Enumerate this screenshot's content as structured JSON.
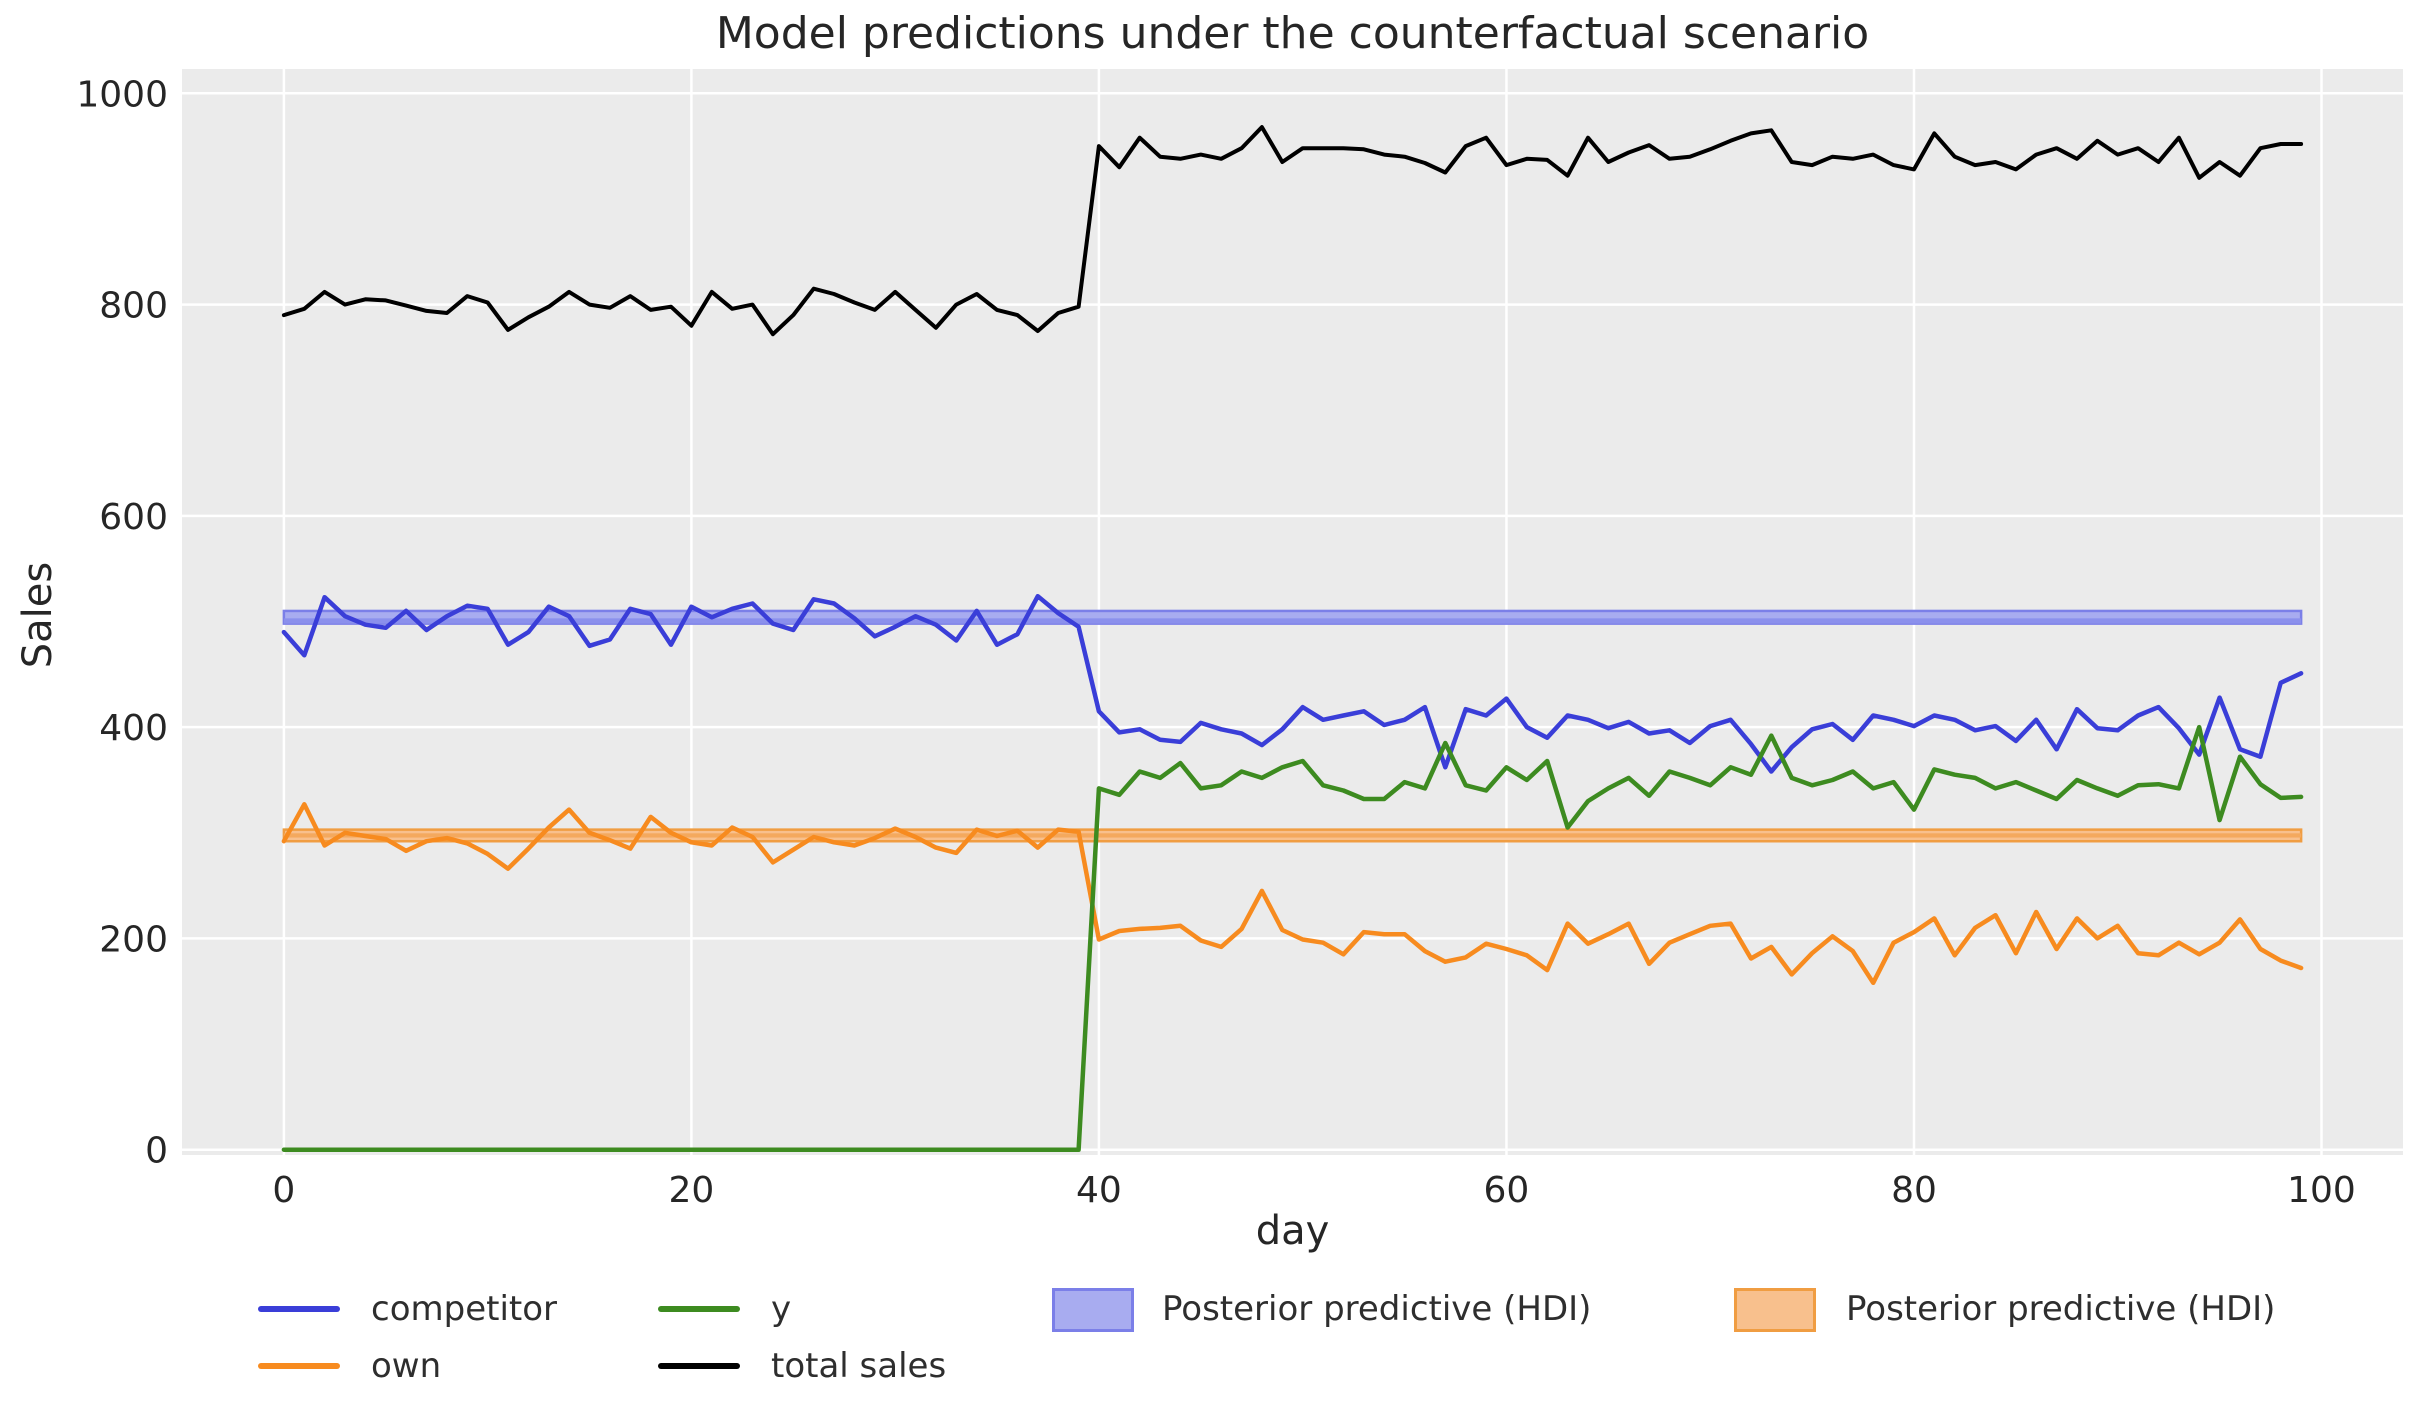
{
  "title": "Model predictions under the counterfactual scenario",
  "axes": {
    "xlabel": "day",
    "ylabel": "Sales",
    "x_ticks": [
      0,
      20,
      40,
      60,
      80,
      100
    ],
    "y_ticks": [
      0,
      200,
      400,
      600,
      800,
      1000
    ],
    "xlim": [
      -5,
      104
    ],
    "ylim": [
      -5,
      1023
    ],
    "grid": "white on light-gray ggplot background"
  },
  "colors": {
    "competitor": "#3a3ed8",
    "own": "#f78b1f",
    "y": "#3d8b20",
    "total_sales": "#000000",
    "hdi_blue_fill": "#a8acf0",
    "hdi_blue_edge": "#7b7fe8",
    "hdi_blue_stripe": "#8b90ec",
    "hdi_orange_fill": "#f8c08d",
    "hdi_orange_edge": "#f09d42",
    "hdi_orange_stripe": "#f4a95e",
    "plot_bg": "#ebebeb",
    "grid": "#ffffff",
    "text": "#262626"
  },
  "legend": {
    "entries": [
      {
        "label": "competitor",
        "kind": "line",
        "color": "#3a3ed8"
      },
      {
        "label": "own",
        "kind": "line",
        "color": "#f78b1f"
      },
      {
        "label": "y",
        "kind": "line",
        "color": "#3d8b20"
      },
      {
        "label": "total sales",
        "kind": "line",
        "color": "#000000"
      },
      {
        "label": "Posterior predictive (HDI)",
        "kind": "patch",
        "fill": "#a8acf0",
        "edge": "#7b7fe8"
      },
      {
        "label": "Posterior predictive (HDI)",
        "kind": "patch",
        "fill": "#f8c08d",
        "edge": "#f09d42"
      }
    ]
  },
  "chart_data": {
    "type": "line",
    "title": "Model predictions under the counterfactual scenario",
    "xlabel": "day",
    "ylabel": "Sales",
    "xlim": [
      -5,
      104
    ],
    "ylim": [
      -5,
      1023
    ],
    "legend_position": "below axes, 2 rows",
    "x": [
      0,
      1,
      2,
      3,
      4,
      5,
      6,
      7,
      8,
      9,
      10,
      11,
      12,
      13,
      14,
      15,
      16,
      17,
      18,
      19,
      20,
      21,
      22,
      23,
      24,
      25,
      26,
      27,
      28,
      29,
      30,
      31,
      32,
      33,
      34,
      35,
      36,
      37,
      38,
      39,
      40,
      41,
      42,
      43,
      44,
      45,
      46,
      47,
      48,
      49,
      50,
      51,
      52,
      53,
      54,
      55,
      56,
      57,
      58,
      59,
      60,
      61,
      62,
      63,
      64,
      65,
      66,
      67,
      68,
      69,
      70,
      71,
      72,
      73,
      74,
      75,
      76,
      77,
      78,
      79,
      80,
      81,
      82,
      83,
      84,
      85,
      86,
      87,
      88,
      89,
      90,
      91,
      92,
      93,
      94,
      95,
      96,
      97,
      98,
      99
    ],
    "series": [
      {
        "name": "competitor",
        "color": "#3a3ed8",
        "values": [
          490,
          468,
          523,
          505,
          497,
          494,
          510,
          492,
          505,
          515,
          512,
          478,
          490,
          514,
          505,
          477,
          483,
          512,
          507,
          478,
          514,
          504,
          512,
          517,
          498,
          492,
          521,
          517,
          503,
          486,
          495,
          505,
          497,
          482,
          510,
          478,
          488,
          524,
          508,
          495,
          415,
          395,
          398,
          388,
          386,
          404,
          398,
          394,
          383,
          398,
          419,
          407,
          411,
          415,
          402,
          407,
          419,
          362,
          417,
          411,
          427,
          400,
          390,
          411,
          407,
          399,
          405,
          394,
          397,
          385,
          401,
          407,
          384,
          358,
          381,
          398,
          403,
          388,
          411,
          407,
          401,
          411,
          407,
          397,
          401,
          387,
          407,
          379,
          417,
          399,
          397,
          411,
          419,
          399,
          374,
          428,
          379,
          372,
          442,
          451
        ]
      },
      {
        "name": "own",
        "color": "#f78b1f",
        "values": [
          292,
          327,
          288,
          300,
          297,
          294,
          283,
          292,
          295,
          290,
          280,
          266,
          285,
          305,
          322,
          300,
          293,
          285,
          315,
          300,
          291,
          288,
          305,
          296,
          272,
          284,
          296,
          291,
          288,
          295,
          304,
          296,
          286,
          281,
          303,
          297,
          302,
          286,
          303,
          301,
          199,
          207,
          209,
          210,
          212,
          198,
          192,
          209,
          245,
          208,
          199,
          196,
          185,
          206,
          204,
          204,
          188,
          178,
          182,
          195,
          190,
          184,
          170,
          214,
          195,
          204,
          214,
          176,
          196,
          204,
          212,
          214,
          181,
          192,
          166,
          186,
          202,
          188,
          158,
          196,
          206,
          219,
          184,
          210,
          222,
          186,
          225,
          190,
          219,
          200,
          212,
          186,
          184,
          196,
          185,
          196,
          218,
          190,
          179,
          172
        ]
      },
      {
        "name": "y",
        "color": "#3d8b20",
        "values": [
          0,
          0,
          0,
          0,
          0,
          0,
          0,
          0,
          0,
          0,
          0,
          0,
          0,
          0,
          0,
          0,
          0,
          0,
          0,
          0,
          0,
          0,
          0,
          0,
          0,
          0,
          0,
          0,
          0,
          0,
          0,
          0,
          0,
          0,
          0,
          0,
          0,
          0,
          0,
          0,
          342,
          336,
          358,
          352,
          366,
          342,
          345,
          358,
          352,
          362,
          368,
          345,
          340,
          332,
          332,
          348,
          342,
          385,
          345,
          340,
          362,
          350,
          368,
          305,
          330,
          342,
          352,
          335,
          358,
          352,
          345,
          362,
          355,
          392,
          352,
          345,
          350,
          358,
          342,
          348,
          322,
          360,
          355,
          352,
          342,
          348,
          340,
          332,
          350,
          342,
          335,
          345,
          346,
          342,
          400,
          312,
          372,
          346,
          333,
          334
        ]
      },
      {
        "name": "total sales",
        "color": "#000000",
        "values": [
          790,
          796,
          812,
          800,
          805,
          804,
          799,
          794,
          792,
          808,
          802,
          776,
          788,
          798,
          812,
          800,
          797,
          808,
          795,
          798,
          780,
          812,
          796,
          800,
          772,
          790,
          815,
          810,
          802,
          795,
          812,
          795,
          778,
          800,
          810,
          795,
          790,
          775,
          792,
          798,
          950,
          930,
          958,
          940,
          938,
          942,
          938,
          948,
          968,
          935,
          948,
          948,
          948,
          947,
          942,
          940,
          934,
          925,
          950,
          958,
          932,
          938,
          937,
          922,
          958,
          935,
          944,
          951,
          938,
          940,
          947,
          955,
          962,
          965,
          935,
          932,
          940,
          938,
          942,
          932,
          928,
          962,
          940,
          932,
          935,
          928,
          942,
          948,
          938,
          955,
          942,
          948,
          935,
          958,
          920,
          935,
          922,
          948,
          952,
          952
        ]
      }
    ],
    "bands": [
      {
        "name": "Posterior predictive (HDI)",
        "for_series": "competitor",
        "x_range": [
          0,
          99
        ],
        "lo": 498,
        "hi": 510,
        "stripe": [
          498,
          503
        ],
        "fill": "#a8acf0",
        "edge": "#7b7fe8",
        "stripe_color": "#8b90ec"
      },
      {
        "name": "Posterior predictive (HDI)",
        "for_series": "own",
        "x_range": [
          0,
          99
        ],
        "lo": 292,
        "hi": 303,
        "stripe": [
          295.5,
          299.5
        ],
        "fill": "#f8c08d",
        "edge": "#f09d42",
        "stripe_color": "#f4a95e"
      }
    ]
  }
}
